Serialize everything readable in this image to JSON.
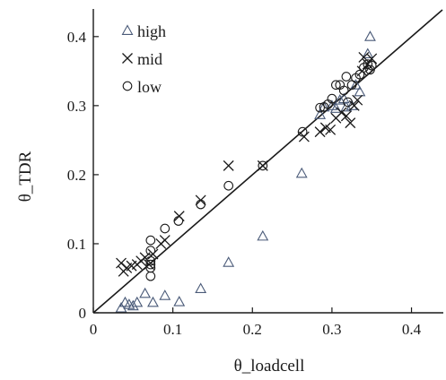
{
  "chart_data": {
    "type": "scatter",
    "title": "",
    "xlabel": "θ_loadcell",
    "ylabel": "θ_TDR",
    "xlim": [
      0,
      0.44
    ],
    "ylim": [
      0,
      0.44
    ],
    "x_ticks": [
      0,
      0.1,
      0.2,
      0.3,
      0.4
    ],
    "x_tick_labels": [
      "0",
      "0.1",
      "0.2",
      "0.3",
      "0.4"
    ],
    "y_ticks": [
      0,
      0.1,
      0.2,
      0.3,
      0.4
    ],
    "y_tick_labels": [
      "0",
      "0.1",
      "0.2",
      "0.3",
      "0.4"
    ],
    "grid": false,
    "legend_position": "top-left",
    "reference_line": {
      "type": "1:1",
      "from": [
        0,
        0
      ],
      "to": [
        0.44,
        0.44
      ]
    },
    "colors": {
      "high": "#4a5a78",
      "mid": "#1a1a1a",
      "low": "#1a1a1a",
      "axis": "#1a1a1a"
    },
    "series": [
      {
        "name": "high",
        "marker": "triangle",
        "points": [
          [
            0.035,
            0.007
          ],
          [
            0.04,
            0.015
          ],
          [
            0.045,
            0.012
          ],
          [
            0.05,
            0.01
          ],
          [
            0.055,
            0.015
          ],
          [
            0.065,
            0.028
          ],
          [
            0.075,
            0.015
          ],
          [
            0.09,
            0.025
          ],
          [
            0.108,
            0.016
          ],
          [
            0.135,
            0.035
          ],
          [
            0.17,
            0.073
          ],
          [
            0.213,
            0.111
          ],
          [
            0.262,
            0.202
          ],
          [
            0.285,
            0.287
          ],
          [
            0.29,
            0.298
          ],
          [
            0.3,
            0.3
          ],
          [
            0.305,
            0.296
          ],
          [
            0.31,
            0.308
          ],
          [
            0.315,
            0.31
          ],
          [
            0.318,
            0.298
          ],
          [
            0.325,
            0.3
          ],
          [
            0.33,
            0.33
          ],
          [
            0.335,
            0.32
          ],
          [
            0.345,
            0.375
          ],
          [
            0.348,
            0.4
          ]
        ]
      },
      {
        "name": "mid",
        "marker": "x",
        "points": [
          [
            0.035,
            0.072
          ],
          [
            0.038,
            0.06
          ],
          [
            0.042,
            0.065
          ],
          [
            0.048,
            0.068
          ],
          [
            0.055,
            0.07
          ],
          [
            0.06,
            0.075
          ],
          [
            0.065,
            0.08
          ],
          [
            0.07,
            0.07
          ],
          [
            0.075,
            0.085
          ],
          [
            0.085,
            0.1
          ],
          [
            0.09,
            0.105
          ],
          [
            0.108,
            0.14
          ],
          [
            0.135,
            0.163
          ],
          [
            0.17,
            0.213
          ],
          [
            0.213,
            0.213
          ],
          [
            0.265,
            0.255
          ],
          [
            0.285,
            0.262
          ],
          [
            0.292,
            0.268
          ],
          [
            0.298,
            0.265
          ],
          [
            0.305,
            0.282
          ],
          [
            0.312,
            0.29
          ],
          [
            0.318,
            0.285
          ],
          [
            0.323,
            0.275
          ],
          [
            0.328,
            0.3
          ],
          [
            0.332,
            0.308
          ],
          [
            0.338,
            0.35
          ],
          [
            0.34,
            0.37
          ],
          [
            0.345,
            0.36
          ],
          [
            0.35,
            0.368
          ]
        ]
      },
      {
        "name": "low",
        "marker": "circle",
        "points": [
          [
            0.072,
            0.053
          ],
          [
            0.072,
            0.065
          ],
          [
            0.072,
            0.07
          ],
          [
            0.072,
            0.075
          ],
          [
            0.072,
            0.09
          ],
          [
            0.072,
            0.105
          ],
          [
            0.09,
            0.122
          ],
          [
            0.107,
            0.133
          ],
          [
            0.135,
            0.157
          ],
          [
            0.17,
            0.184
          ],
          [
            0.213,
            0.213
          ],
          [
            0.263,
            0.262
          ],
          [
            0.285,
            0.297
          ],
          [
            0.29,
            0.298
          ],
          [
            0.295,
            0.302
          ],
          [
            0.3,
            0.31
          ],
          [
            0.305,
            0.33
          ],
          [
            0.31,
            0.33
          ],
          [
            0.315,
            0.322
          ],
          [
            0.318,
            0.342
          ],
          [
            0.32,
            0.305
          ],
          [
            0.325,
            0.33
          ],
          [
            0.33,
            0.34
          ],
          [
            0.335,
            0.345
          ],
          [
            0.34,
            0.355
          ],
          [
            0.345,
            0.36
          ],
          [
            0.348,
            0.352
          ],
          [
            0.35,
            0.358
          ]
        ]
      }
    ]
  }
}
